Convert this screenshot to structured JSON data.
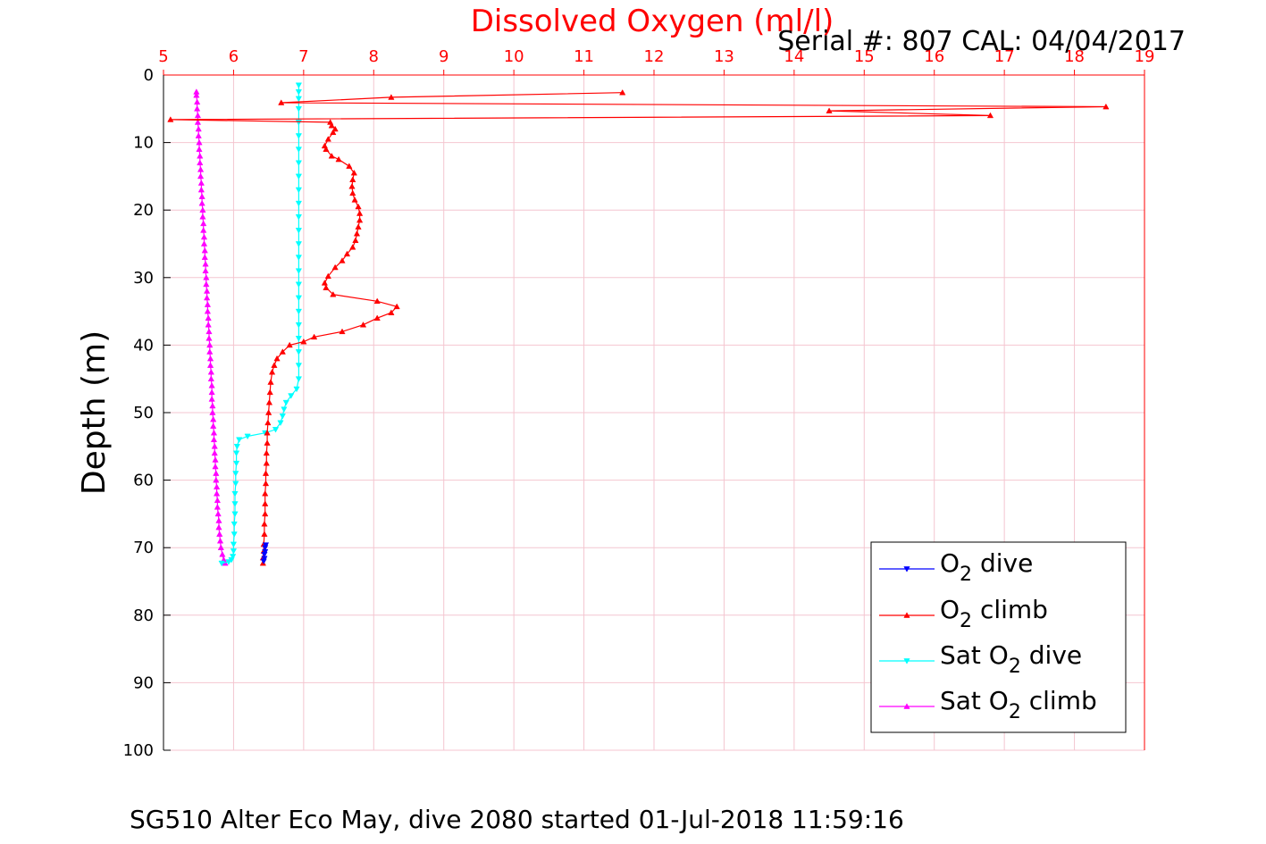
{
  "colors": {
    "o2_dive": "#0000ff",
    "o2_climb": "#ff0000",
    "sat_dive": "#00ffff",
    "sat_climb": "#ff00ff",
    "grid": "#f4c6d0",
    "axis_top": "#ff0000",
    "axis_left": "#000000"
  },
  "chart_data": {
    "type": "line",
    "title": "Dissolved Oxygen (ml/l)",
    "serial_label": "Serial #: 807  CAL: 04/04/2017",
    "xlabel": "",
    "ylabel": "Depth (m)",
    "caption": "SG510 Alter Eco May, dive 2080 started 01-Jul-2018 11:59:16",
    "xlim": [
      5,
      19
    ],
    "ylim": [
      0,
      100
    ],
    "y_reversed": true,
    "x_axis_position": "top",
    "grid": true,
    "legend_position": "bottom-right",
    "xticks": [
      "5",
      "6",
      "7",
      "8",
      "9",
      "10",
      "11",
      "12",
      "13",
      "14",
      "15",
      "16",
      "17",
      "18",
      "19"
    ],
    "yticks": [
      "0",
      "10",
      "20",
      "30",
      "40",
      "50",
      "60",
      "70",
      "80",
      "90",
      "100"
    ],
    "series": [
      {
        "key": "o2_dive",
        "name_parts": [
          "O",
          "2",
          " dive"
        ],
        "marker": "down",
        "points": [
          [
            6.46,
            69.6
          ],
          [
            6.45,
            70.0
          ],
          [
            6.45,
            70.6
          ],
          [
            6.44,
            71.0
          ],
          [
            6.44,
            71.6
          ],
          [
            6.43,
            72.0
          ]
        ]
      },
      {
        "key": "o2_climb",
        "name_parts": [
          "O",
          "2",
          " climb"
        ],
        "marker": "up",
        "points": [
          [
            6.42,
            72.3
          ],
          [
            6.42,
            71.5
          ],
          [
            6.43,
            70.5
          ],
          [
            6.43,
            69.5
          ],
          [
            6.44,
            68.0
          ],
          [
            6.44,
            66.5
          ],
          [
            6.45,
            65.0
          ],
          [
            6.45,
            63.5
          ],
          [
            6.45,
            62.0
          ],
          [
            6.46,
            60.5
          ],
          [
            6.46,
            59.0
          ],
          [
            6.47,
            57.5
          ],
          [
            6.47,
            56.0
          ],
          [
            6.48,
            54.5
          ],
          [
            6.48,
            53.0
          ],
          [
            6.49,
            51.5
          ],
          [
            6.5,
            50.0
          ],
          [
            6.51,
            48.5
          ],
          [
            6.52,
            47.0
          ],
          [
            6.53,
            45.5
          ],
          [
            6.55,
            44.0
          ],
          [
            6.58,
            43.0
          ],
          [
            6.62,
            42.0
          ],
          [
            6.7,
            41.0
          ],
          [
            6.8,
            40.0
          ],
          [
            7.0,
            39.5
          ],
          [
            7.15,
            38.8
          ],
          [
            7.55,
            38.0
          ],
          [
            7.85,
            37.0
          ],
          [
            8.05,
            36.0
          ],
          [
            8.25,
            35.2
          ],
          [
            8.33,
            34.3
          ],
          [
            8.05,
            33.5
          ],
          [
            7.42,
            32.5
          ],
          [
            7.32,
            31.5
          ],
          [
            7.3,
            30.8
          ],
          [
            7.35,
            29.8
          ],
          [
            7.45,
            28.5
          ],
          [
            7.55,
            27.5
          ],
          [
            7.62,
            26.5
          ],
          [
            7.7,
            25.5
          ],
          [
            7.74,
            24.5
          ],
          [
            7.76,
            23.5
          ],
          [
            7.78,
            22.5
          ],
          [
            7.8,
            21.5
          ],
          [
            7.8,
            20.5
          ],
          [
            7.78,
            19.5
          ],
          [
            7.73,
            18.5
          ],
          [
            7.7,
            17.5
          ],
          [
            7.69,
            16.5
          ],
          [
            7.7,
            15.5
          ],
          [
            7.72,
            14.5
          ],
          [
            7.65,
            13.5
          ],
          [
            7.5,
            12.5
          ],
          [
            7.4,
            12.0
          ],
          [
            7.32,
            11.0
          ],
          [
            7.3,
            10.5
          ],
          [
            7.35,
            9.5
          ],
          [
            7.42,
            8.5
          ],
          [
            7.45,
            8.0
          ],
          [
            7.4,
            7.5
          ],
          [
            7.38,
            7.0
          ],
          [
            5.1,
            6.6
          ],
          [
            16.8,
            6.0
          ],
          [
            14.5,
            5.3
          ],
          [
            18.45,
            4.7
          ],
          [
            6.68,
            4.1
          ],
          [
            8.25,
            3.3
          ],
          [
            11.55,
            2.6
          ]
        ]
      },
      {
        "key": "sat_dive",
        "name_parts": [
          "Sat O",
          "2",
          " dive"
        ],
        "marker": "down",
        "points": [
          [
            6.93,
            1.5
          ],
          [
            6.93,
            2.5
          ],
          [
            6.93,
            3.5
          ],
          [
            6.93,
            5.0
          ],
          [
            6.93,
            7.0
          ],
          [
            6.93,
            9.0
          ],
          [
            6.93,
            11.0
          ],
          [
            6.93,
            13.0
          ],
          [
            6.93,
            15.0
          ],
          [
            6.93,
            17.0
          ],
          [
            6.93,
            19.0
          ],
          [
            6.93,
            21.0
          ],
          [
            6.93,
            23.0
          ],
          [
            6.93,
            25.0
          ],
          [
            6.93,
            27.0
          ],
          [
            6.93,
            29.0
          ],
          [
            6.93,
            31.0
          ],
          [
            6.93,
            33.0
          ],
          [
            6.93,
            35.0
          ],
          [
            6.93,
            37.0
          ],
          [
            6.93,
            39.0
          ],
          [
            6.93,
            41.0
          ],
          [
            6.93,
            43.0
          ],
          [
            6.93,
            45.0
          ],
          [
            6.9,
            46.5
          ],
          [
            6.82,
            47.5
          ],
          [
            6.75,
            48.5
          ],
          [
            6.72,
            49.5
          ],
          [
            6.7,
            50.5
          ],
          [
            6.67,
            51.5
          ],
          [
            6.6,
            52.5
          ],
          [
            6.45,
            53.0
          ],
          [
            6.2,
            53.5
          ],
          [
            6.08,
            54.0
          ],
          [
            6.05,
            55.0
          ],
          [
            6.04,
            56.0
          ],
          [
            6.04,
            57.5
          ],
          [
            6.03,
            59.0
          ],
          [
            6.03,
            60.5
          ],
          [
            6.02,
            62.0
          ],
          [
            6.02,
            63.5
          ],
          [
            6.02,
            65.0
          ],
          [
            6.01,
            66.5
          ],
          [
            6.01,
            68.0
          ],
          [
            6.0,
            69.5
          ],
          [
            6.0,
            70.5
          ],
          [
            5.99,
            71.3
          ],
          [
            5.97,
            71.8
          ],
          [
            5.93,
            72.1
          ],
          [
            5.83,
            72.3
          ]
        ]
      },
      {
        "key": "sat_climb",
        "name_parts": [
          "Sat O",
          "2",
          " climb"
        ],
        "marker": "up",
        "points": [
          [
            5.88,
            72.3
          ],
          [
            5.86,
            71.8
          ],
          [
            5.84,
            71.0
          ],
          [
            5.82,
            70.0
          ],
          [
            5.81,
            69.0
          ],
          [
            5.8,
            68.0
          ],
          [
            5.79,
            67.0
          ],
          [
            5.79,
            66.0
          ],
          [
            5.78,
            65.0
          ],
          [
            5.77,
            64.0
          ],
          [
            5.77,
            63.0
          ],
          [
            5.76,
            62.0
          ],
          [
            5.76,
            61.0
          ],
          [
            5.75,
            60.0
          ],
          [
            5.75,
            59.0
          ],
          [
            5.74,
            58.0
          ],
          [
            5.74,
            57.0
          ],
          [
            5.73,
            56.0
          ],
          [
            5.73,
            55.0
          ],
          [
            5.72,
            54.0
          ],
          [
            5.72,
            53.0
          ],
          [
            5.71,
            52.0
          ],
          [
            5.71,
            51.0
          ],
          [
            5.7,
            50.0
          ],
          [
            5.7,
            49.0
          ],
          [
            5.69,
            48.0
          ],
          [
            5.69,
            47.0
          ],
          [
            5.69,
            46.0
          ],
          [
            5.68,
            45.0
          ],
          [
            5.68,
            44.0
          ],
          [
            5.67,
            43.0
          ],
          [
            5.67,
            42.0
          ],
          [
            5.66,
            41.0
          ],
          [
            5.66,
            40.0
          ],
          [
            5.65,
            39.0
          ],
          [
            5.65,
            38.0
          ],
          [
            5.64,
            37.0
          ],
          [
            5.64,
            36.0
          ],
          [
            5.63,
            35.0
          ],
          [
            5.63,
            34.0
          ],
          [
            5.62,
            33.0
          ],
          [
            5.62,
            32.0
          ],
          [
            5.61,
            31.0
          ],
          [
            5.61,
            30.0
          ],
          [
            5.6,
            29.0
          ],
          [
            5.6,
            28.0
          ],
          [
            5.59,
            27.0
          ],
          [
            5.59,
            26.0
          ],
          [
            5.58,
            25.0
          ],
          [
            5.58,
            24.0
          ],
          [
            5.57,
            23.0
          ],
          [
            5.57,
            22.0
          ],
          [
            5.56,
            21.0
          ],
          [
            5.56,
            20.0
          ],
          [
            5.55,
            19.0
          ],
          [
            5.55,
            18.0
          ],
          [
            5.54,
            17.0
          ],
          [
            5.54,
            16.0
          ],
          [
            5.53,
            15.0
          ],
          [
            5.53,
            14.0
          ],
          [
            5.52,
            13.0
          ],
          [
            5.52,
            12.0
          ],
          [
            5.51,
            11.0
          ],
          [
            5.51,
            10.0
          ],
          [
            5.5,
            9.0
          ],
          [
            5.5,
            8.0
          ],
          [
            5.49,
            7.0
          ],
          [
            5.49,
            6.0
          ],
          [
            5.48,
            5.0
          ],
          [
            5.48,
            4.0
          ],
          [
            5.47,
            3.0
          ],
          [
            5.47,
            2.5
          ]
        ]
      }
    ]
  }
}
